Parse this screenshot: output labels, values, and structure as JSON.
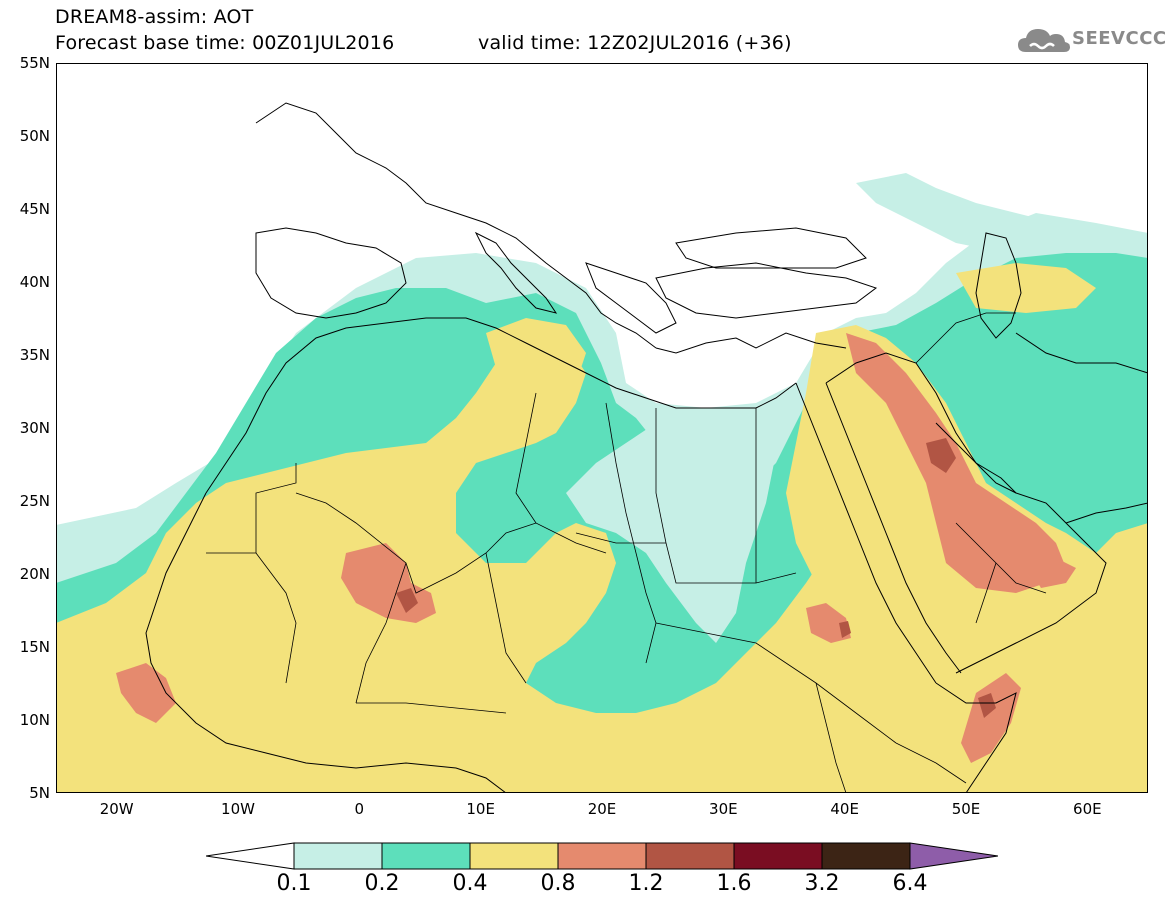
{
  "header": {
    "title": "DREAM8-assim: AOT",
    "base_time": "Forecast base time: 00Z01JUL2016",
    "valid_time": "valid time: 12Z02JUL2016 (+36)"
  },
  "logo": {
    "text": "SEEVCCC",
    "icon": "cloud-icon"
  },
  "map": {
    "field": "AOT",
    "lon_range": [
      -25,
      65
    ],
    "lat_range": [
      5,
      55
    ],
    "lat_labels": [
      "55N",
      "50N",
      "45N",
      "40N",
      "35N",
      "30N",
      "25N",
      "20N",
      "15N",
      "10N",
      "5N"
    ],
    "lon_labels": [
      "20W",
      "10W",
      "0",
      "10E",
      "20E",
      "30E",
      "40E",
      "50E",
      "60E"
    ]
  },
  "colorbar": {
    "labels": [
      "0.1",
      "0.2",
      "0.4",
      "0.8",
      "1.2",
      "1.6",
      "3.2",
      "6.4"
    ],
    "colors": [
      "#ffffff",
      "#c6efe6",
      "#5ddfbb",
      "#f3e27c",
      "#e58a6e",
      "#b15544",
      "#7a0d22",
      "#3c2415",
      "#8e5da9"
    ]
  }
}
